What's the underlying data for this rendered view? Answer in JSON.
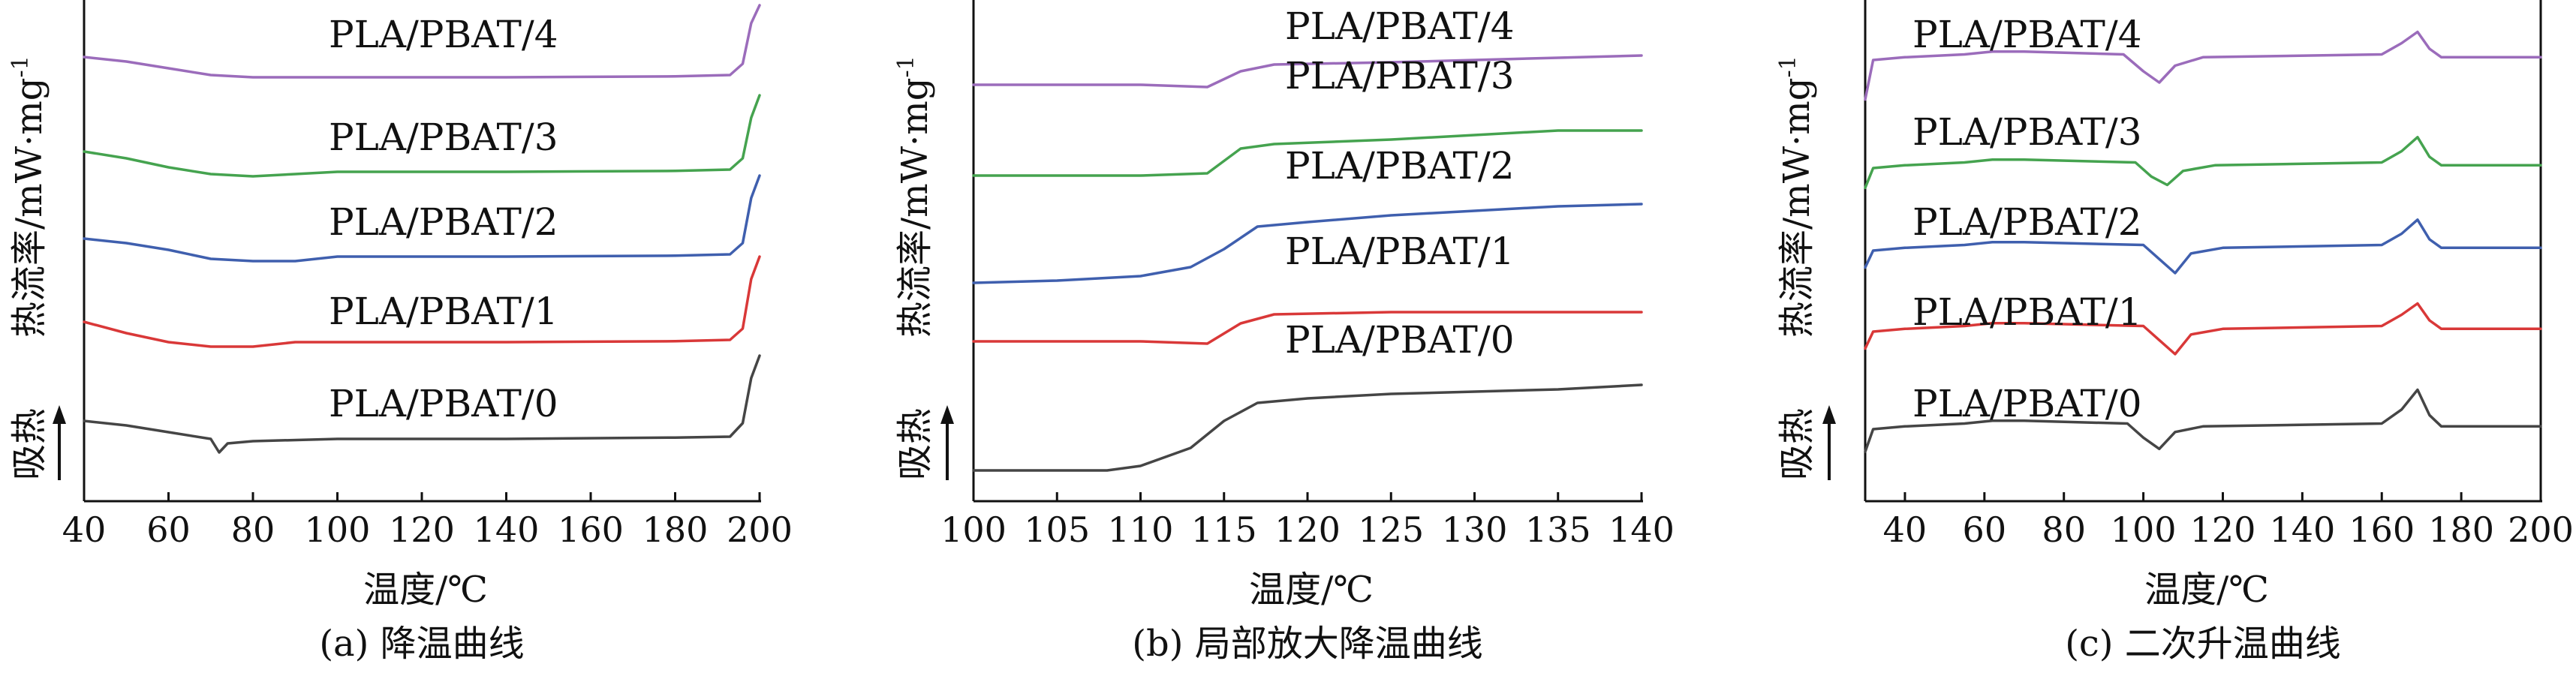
{
  "chart_data": [
    {
      "type": "line",
      "caption": "(a) 降温曲线",
      "xlabel": "温度/℃",
      "ylabel": "热流率/mW·mg",
      "ylabel_sup": "-1",
      "y_direction_label": "吸热",
      "xlim": [
        40,
        200
      ],
      "xticks": [
        40,
        60,
        80,
        100,
        120,
        140,
        160,
        180,
        200
      ],
      "series": [
        {
          "name": "PLA/PBAT/4",
          "color": "#9b6cbb",
          "offset": 4,
          "points": [
            [
              40,
              0.45
            ],
            [
              50,
              0.35
            ],
            [
              60,
              0.2
            ],
            [
              70,
              0.05
            ],
            [
              80,
              0
            ],
            [
              100,
              0
            ],
            [
              140,
              0
            ],
            [
              180,
              0.02
            ],
            [
              193,
              0.05
            ],
            [
              196,
              0.3
            ],
            [
              198,
              1.2
            ],
            [
              200,
              1.6
            ]
          ]
        },
        {
          "name": "PLA/PBAT/3",
          "color": "#45a34f",
          "offset": 3,
          "points": [
            [
              40,
              0.55
            ],
            [
              50,
              0.4
            ],
            [
              60,
              0.2
            ],
            [
              70,
              0.05
            ],
            [
              80,
              0
            ],
            [
              90,
              0.05
            ],
            [
              100,
              0.1
            ],
            [
              140,
              0.1
            ],
            [
              180,
              0.12
            ],
            [
              193,
              0.15
            ],
            [
              196,
              0.4
            ],
            [
              198,
              1.3
            ],
            [
              200,
              1.8
            ]
          ]
        },
        {
          "name": "PLA/PBAT/2",
          "color": "#3f5fae",
          "offset": 2,
          "points": [
            [
              40,
              0.5
            ],
            [
              50,
              0.4
            ],
            [
              60,
              0.25
            ],
            [
              70,
              0.05
            ],
            [
              80,
              0
            ],
            [
              90,
              0
            ],
            [
              100,
              0.1
            ],
            [
              140,
              0.1
            ],
            [
              180,
              0.12
            ],
            [
              193,
              0.15
            ],
            [
              196,
              0.4
            ],
            [
              198,
              1.4
            ],
            [
              200,
              1.9
            ]
          ]
        },
        {
          "name": "PLA/PBAT/1",
          "color": "#d93838",
          "offset": 1,
          "points": [
            [
              40,
              0.55
            ],
            [
              50,
              0.3
            ],
            [
              60,
              0.1
            ],
            [
              70,
              0
            ],
            [
              80,
              0
            ],
            [
              90,
              0.1
            ],
            [
              100,
              0.1
            ],
            [
              140,
              0.1
            ],
            [
              180,
              0.12
            ],
            [
              193,
              0.15
            ],
            [
              196,
              0.4
            ],
            [
              198,
              1.5
            ],
            [
              200,
              2.0
            ]
          ]
        },
        {
          "name": "PLA/PBAT/0",
          "color": "#454545",
          "offset": 0,
          "points": [
            [
              40,
              0.55
            ],
            [
              50,
              0.45
            ],
            [
              60,
              0.3
            ],
            [
              70,
              0.15
            ],
            [
              72,
              -0.15
            ],
            [
              74,
              0.05
            ],
            [
              80,
              0.1
            ],
            [
              100,
              0.15
            ],
            [
              140,
              0.15
            ],
            [
              180,
              0.18
            ],
            [
              193,
              0.2
            ],
            [
              196,
              0.5
            ],
            [
              198,
              1.5
            ],
            [
              200,
              2.0
            ]
          ]
        }
      ]
    },
    {
      "type": "line",
      "caption": "(b) 局部放大降温曲线",
      "xlabel": "温度/℃",
      "ylabel": "热流率/mW·mg",
      "ylabel_sup": "-1",
      "y_direction_label": "吸热",
      "xlim": [
        100,
        140
      ],
      "xticks": [
        100,
        105,
        110,
        115,
        120,
        125,
        130,
        135,
        140
      ],
      "series": [
        {
          "name": "PLA/PBAT/4",
          "color": "#9b6cbb",
          "offset": 4,
          "points": [
            [
              100,
              0
            ],
            [
              110,
              0
            ],
            [
              114,
              -0.05
            ],
            [
              116,
              0.3
            ],
            [
              118,
              0.45
            ],
            [
              125,
              0.5
            ],
            [
              130,
              0.55
            ],
            [
              135,
              0.6
            ],
            [
              140,
              0.65
            ]
          ]
        },
        {
          "name": "PLA/PBAT/3",
          "color": "#45a34f",
          "offset": 3,
          "points": [
            [
              100,
              0
            ],
            [
              110,
              0
            ],
            [
              114,
              0.05
            ],
            [
              116,
              0.6
            ],
            [
              118,
              0.7
            ],
            [
              125,
              0.8
            ],
            [
              130,
              0.9
            ],
            [
              135,
              1.0
            ],
            [
              140,
              1.0
            ]
          ]
        },
        {
          "name": "PLA/PBAT/2",
          "color": "#3f5fae",
          "offset": 2,
          "points": [
            [
              100,
              0
            ],
            [
              105,
              0.05
            ],
            [
              110,
              0.15
            ],
            [
              113,
              0.35
            ],
            [
              115,
              0.75
            ],
            [
              117,
              1.25
            ],
            [
              120,
              1.35
            ],
            [
              125,
              1.5
            ],
            [
              130,
              1.6
            ],
            [
              135,
              1.7
            ],
            [
              140,
              1.75
            ]
          ]
        },
        {
          "name": "PLA/PBAT/1",
          "color": "#d93838",
          "offset": 1,
          "points": [
            [
              100,
              0
            ],
            [
              110,
              0
            ],
            [
              114,
              -0.05
            ],
            [
              116,
              0.4
            ],
            [
              118,
              0.6
            ],
            [
              125,
              0.65
            ],
            [
              130,
              0.65
            ],
            [
              135,
              0.65
            ],
            [
              140,
              0.65
            ]
          ]
        },
        {
          "name": "PLA/PBAT/0",
          "color": "#454545",
          "offset": 0,
          "points": [
            [
              100,
              0
            ],
            [
              108,
              0
            ],
            [
              110,
              0.1
            ],
            [
              113,
              0.5
            ],
            [
              115,
              1.1
            ],
            [
              117,
              1.5
            ],
            [
              120,
              1.6
            ],
            [
              125,
              1.7
            ],
            [
              130,
              1.75
            ],
            [
              135,
              1.8
            ],
            [
              140,
              1.9
            ]
          ]
        }
      ]
    },
    {
      "type": "line",
      "caption": "(c) 二次升温曲线",
      "xlabel": "温度/℃",
      "ylabel": "热流率/mW·mg",
      "ylabel_sup": "-1",
      "y_direction_label": "吸热",
      "xlim": [
        30,
        200
      ],
      "xticks": [
        40,
        60,
        80,
        100,
        120,
        140,
        160,
        180,
        200
      ],
      "series": [
        {
          "name": "PLA/PBAT/4",
          "color": "#9b6cbb",
          "offset": 4,
          "points": [
            [
              30,
              -0.7
            ],
            [
              32,
              0
            ],
            [
              40,
              0.05
            ],
            [
              55,
              0.1
            ],
            [
              62,
              0.15
            ],
            [
              70,
              0.15
            ],
            [
              95,
              0.1
            ],
            [
              100,
              -0.2
            ],
            [
              104,
              -0.4
            ],
            [
              108,
              -0.1
            ],
            [
              115,
              0.05
            ],
            [
              160,
              0.1
            ],
            [
              165,
              0.3
            ],
            [
              169,
              0.5
            ],
            [
              172,
              0.2
            ],
            [
              175,
              0.05
            ],
            [
              200,
              0.05
            ]
          ]
        },
        {
          "name": "PLA/PBAT/3",
          "color": "#45a34f",
          "offset": 3,
          "points": [
            [
              30,
              -0.35
            ],
            [
              32,
              0
            ],
            [
              40,
              0.05
            ],
            [
              55,
              0.1
            ],
            [
              62,
              0.15
            ],
            [
              70,
              0.15
            ],
            [
              98,
              0.1
            ],
            [
              102,
              -0.15
            ],
            [
              106,
              -0.3
            ],
            [
              110,
              -0.05
            ],
            [
              118,
              0.05
            ],
            [
              160,
              0.1
            ],
            [
              165,
              0.3
            ],
            [
              169,
              0.55
            ],
            [
              172,
              0.2
            ],
            [
              175,
              0.05
            ],
            [
              200,
              0.05
            ]
          ]
        },
        {
          "name": "PLA/PBAT/2",
          "color": "#3f5fae",
          "offset": 2,
          "points": [
            [
              30,
              -0.3
            ],
            [
              32,
              0
            ],
            [
              40,
              0.05
            ],
            [
              55,
              0.1
            ],
            [
              62,
              0.15
            ],
            [
              70,
              0.15
            ],
            [
              100,
              0.1
            ],
            [
              104,
              -0.15
            ],
            [
              108,
              -0.4
            ],
            [
              112,
              -0.05
            ],
            [
              120,
              0.05
            ],
            [
              160,
              0.1
            ],
            [
              165,
              0.3
            ],
            [
              169,
              0.55
            ],
            [
              172,
              0.2
            ],
            [
              175,
              0.05
            ],
            [
              200,
              0.05
            ]
          ]
        },
        {
          "name": "PLA/PBAT/1",
          "color": "#d93838",
          "offset": 1,
          "points": [
            [
              30,
              -0.3
            ],
            [
              32,
              0
            ],
            [
              40,
              0.05
            ],
            [
              55,
              0.1
            ],
            [
              62,
              0.15
            ],
            [
              70,
              0.15
            ],
            [
              100,
              0.1
            ],
            [
              104,
              -0.15
            ],
            [
              108,
              -0.4
            ],
            [
              112,
              -0.05
            ],
            [
              120,
              0.05
            ],
            [
              160,
              0.1
            ],
            [
              165,
              0.3
            ],
            [
              169,
              0.5
            ],
            [
              172,
              0.2
            ],
            [
              175,
              0.05
            ],
            [
              200,
              0.05
            ]
          ]
        },
        {
          "name": "PLA/PBAT/0",
          "color": "#454545",
          "offset": 0,
          "points": [
            [
              30,
              -0.4
            ],
            [
              32,
              0
            ],
            [
              40,
              0.05
            ],
            [
              55,
              0.1
            ],
            [
              62,
              0.15
            ],
            [
              70,
              0.15
            ],
            [
              96,
              0.1
            ],
            [
              100,
              -0.15
            ],
            [
              104,
              -0.35
            ],
            [
              108,
              -0.05
            ],
            [
              115,
              0.05
            ],
            [
              160,
              0.1
            ],
            [
              165,
              0.35
            ],
            [
              169,
              0.7
            ],
            [
              172,
              0.25
            ],
            [
              175,
              0.05
            ],
            [
              200,
              0.05
            ]
          ]
        }
      ]
    }
  ]
}
